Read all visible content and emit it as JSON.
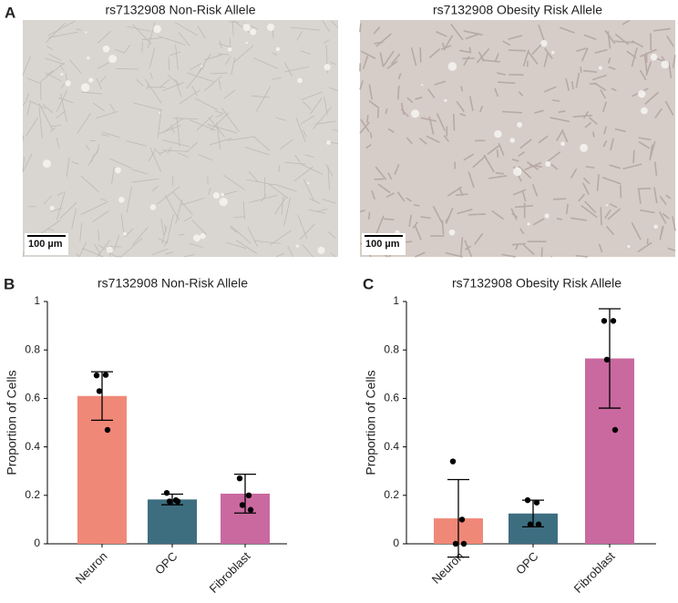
{
  "figure": {
    "panel_label": "A",
    "images": [
      {
        "title": "rs7132908 Non-Risk Allele",
        "scale_bar": "100 µm"
      },
      {
        "title": "rs7132908 Obesity Risk Allele",
        "scale_bar": "100 µm"
      }
    ]
  },
  "chart_data": [
    {
      "type": "bar",
      "panel_label": "B",
      "title": "rs7132908 Non-Risk Allele",
      "y_label": "Proportion of Cells",
      "categories": [
        "Neuron",
        "OPC",
        "Fibroblast"
      ],
      "values": [
        0.61,
        0.183,
        0.207
      ],
      "errors": [
        0.1,
        0.022,
        0.08
      ],
      "points": [
        [
          0.695,
          0.697,
          0.63,
          0.47
        ],
        [
          0.21,
          0.18,
          0.175,
          0.175
        ],
        [
          0.27,
          0.2,
          0.16,
          0.14
        ]
      ],
      "colors": [
        "#f08878",
        "#3d6e80",
        "#c9699f"
      ],
      "ylim": [
        0,
        1
      ],
      "yticks": [
        0,
        0.2,
        0.4,
        0.6,
        0.8,
        1
      ]
    },
    {
      "type": "bar",
      "panel_label": "C",
      "title": "rs7132908 Obesity Risk Allele",
      "y_label": "Proportion of Cells",
      "categories": [
        "Neuron",
        "OPC",
        "Fibroblast"
      ],
      "values": [
        0.105,
        0.125,
        0.765
      ],
      "errors": [
        0.16,
        0.055,
        0.205
      ],
      "points": [
        [
          0.34,
          0.1,
          0,
          0
        ],
        [
          0.18,
          0.17,
          0.08,
          0.08
        ],
        [
          0.92,
          0.92,
          0.76,
          0.47
        ]
      ],
      "colors": [
        "#f08878",
        "#3d6e80",
        "#c9699f"
      ],
      "ylim": [
        0,
        1
      ],
      "yticks": [
        0,
        0.2,
        0.4,
        0.6,
        0.8,
        1
      ]
    }
  ]
}
